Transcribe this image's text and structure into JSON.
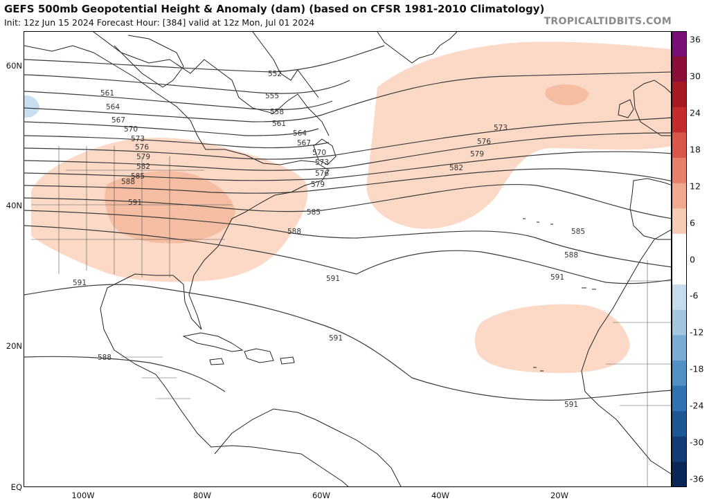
{
  "header": {
    "title": "GEFS 500mb Geopotential Height & Anomaly (dam) (based on CFSR 1981-2010 Climatology)",
    "subtitle": "Init: 12z Jun 15 2024   Forecast Hour: [384]   valid at 12z Mon, Jul 01 2024",
    "credit": "TROPICALTIDBITS.COM"
  },
  "axes": {
    "lat_labels": [
      "60N",
      "40N",
      "20N",
      "EQ"
    ],
    "lon_labels": [
      "100W",
      "80W",
      "60W",
      "40W",
      "20W"
    ]
  },
  "colorbar": {
    "labels": [
      "36",
      "30",
      "24",
      "18",
      "12",
      "6",
      "0",
      "-6",
      "-12",
      "-18",
      "-24",
      "-30",
      "-36"
    ],
    "colors": [
      "#7a0e78",
      "#8c0f3a",
      "#a81a22",
      "#c42c2c",
      "#d9574a",
      "#e6806a",
      "#f0a88e",
      "#f6cbb6",
      "#ffffff",
      "#ffffff",
      "#c6dcec",
      "#a3c5e0",
      "#7aabd3",
      "#5190c4",
      "#2f73b2",
      "#1d5796",
      "#123d78",
      "#0a2758"
    ]
  },
  "contours": {
    "color": "#3a3a3a",
    "labels": [
      "552",
      "555",
      "558",
      "561",
      "561",
      "564",
      "564",
      "567",
      "567",
      "570",
      "570",
      "573",
      "573",
      "573",
      "576",
      "576",
      "576",
      "579",
      "579",
      "579",
      "582",
      "582",
      "585",
      "585",
      "585",
      "588",
      "588",
      "588",
      "588",
      "591",
      "591",
      "591",
      "591",
      "591",
      "591"
    ]
  },
  "anomaly_colors": {
    "positive_light": "#fbd9c6",
    "positive_mid": "#f5bda2",
    "positive_strong": "#eda98a",
    "negative_light": "#c9dff0"
  },
  "land_color": "#222222"
}
